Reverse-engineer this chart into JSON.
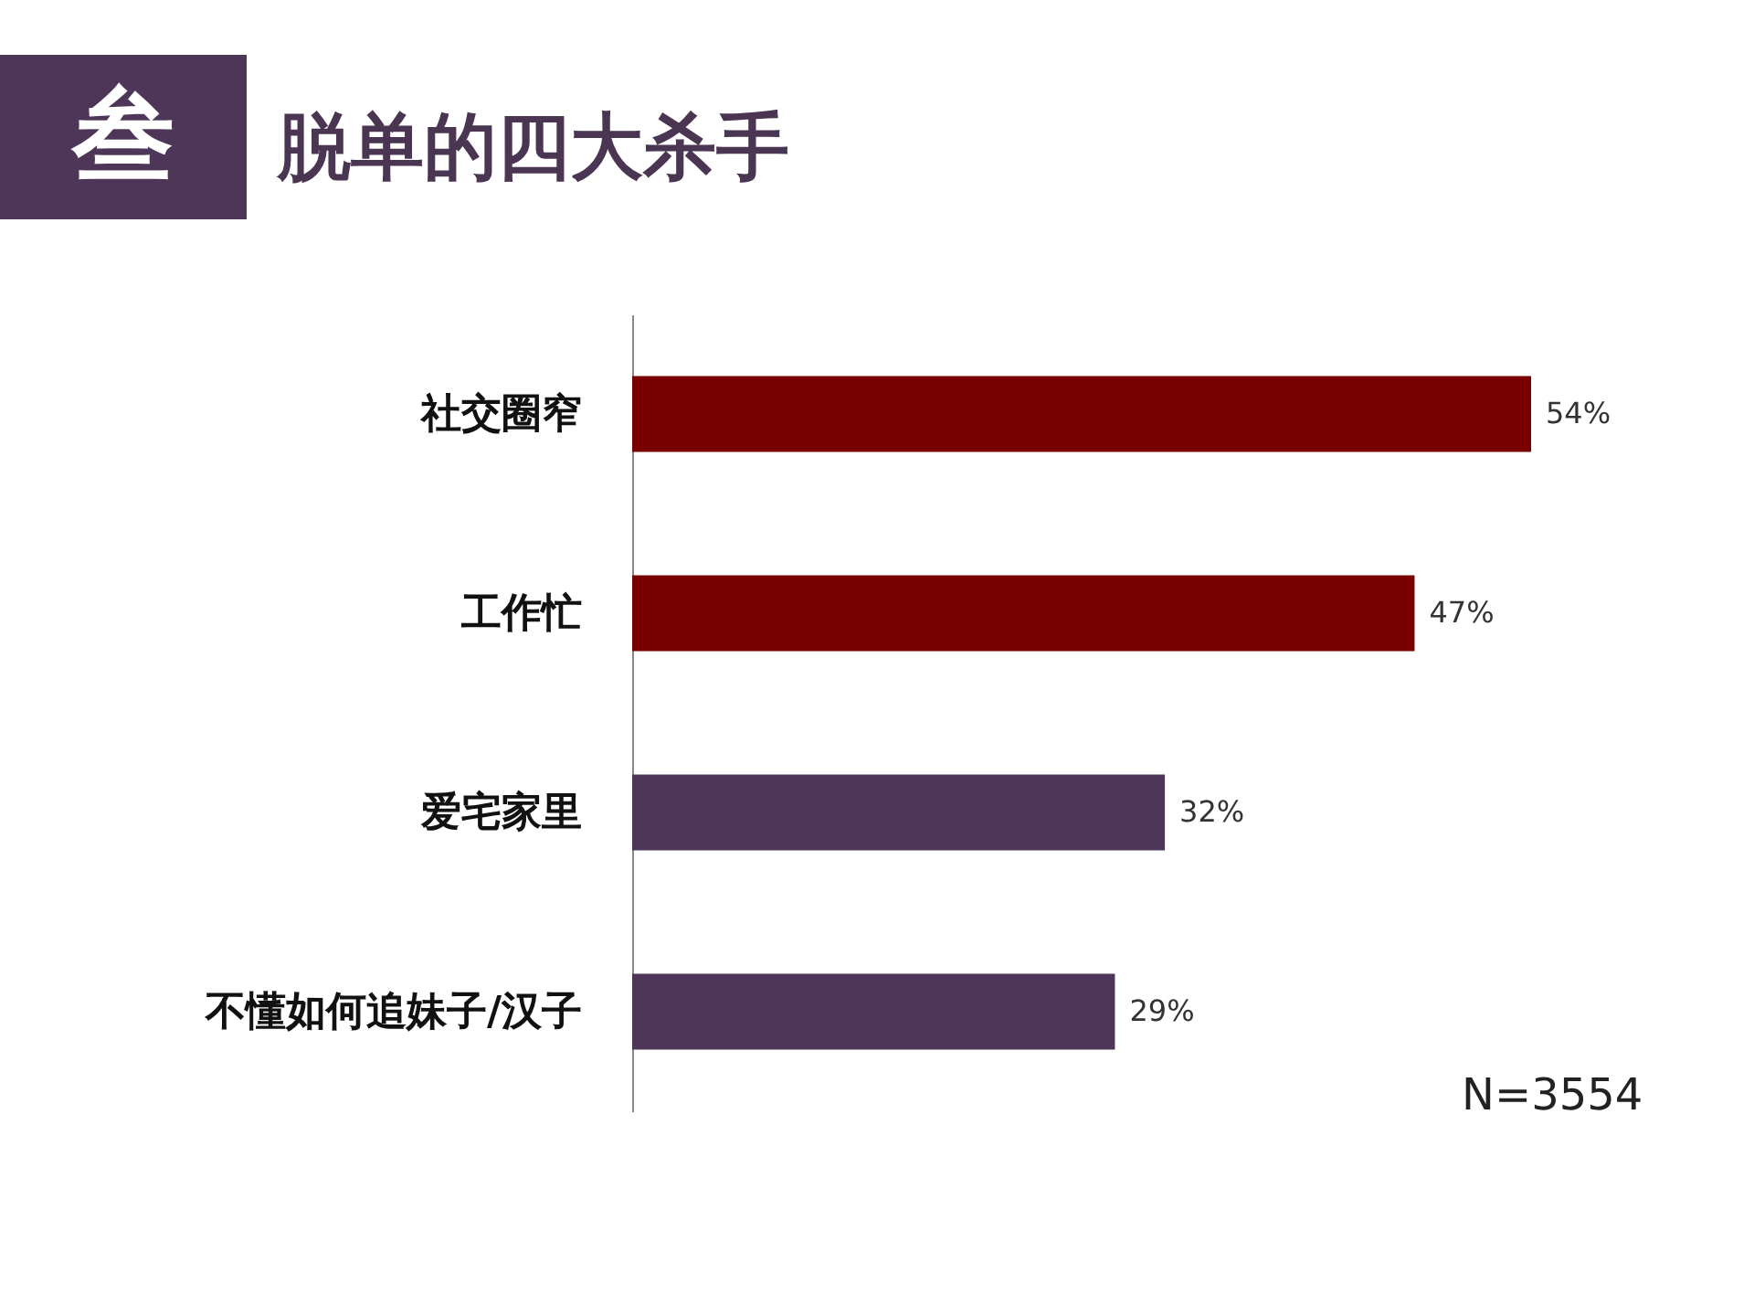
{
  "chart_data": {
    "type": "bar",
    "orientation": "horizontal",
    "title": "脱单的四大杀手",
    "categories": [
      "社交圈窄",
      "工作忙",
      "爱宅家里",
      "不懂如何追妹子/汉子"
    ],
    "values": [
      54,
      47,
      32,
      29
    ],
    "value_labels": [
      "54%",
      "47%",
      "32%",
      "29%"
    ],
    "colors": [
      "#780000",
      "#780000",
      "#4d3658",
      "#4d3658"
    ],
    "annotations": [
      "叁",
      "N=3554"
    ]
  }
}
